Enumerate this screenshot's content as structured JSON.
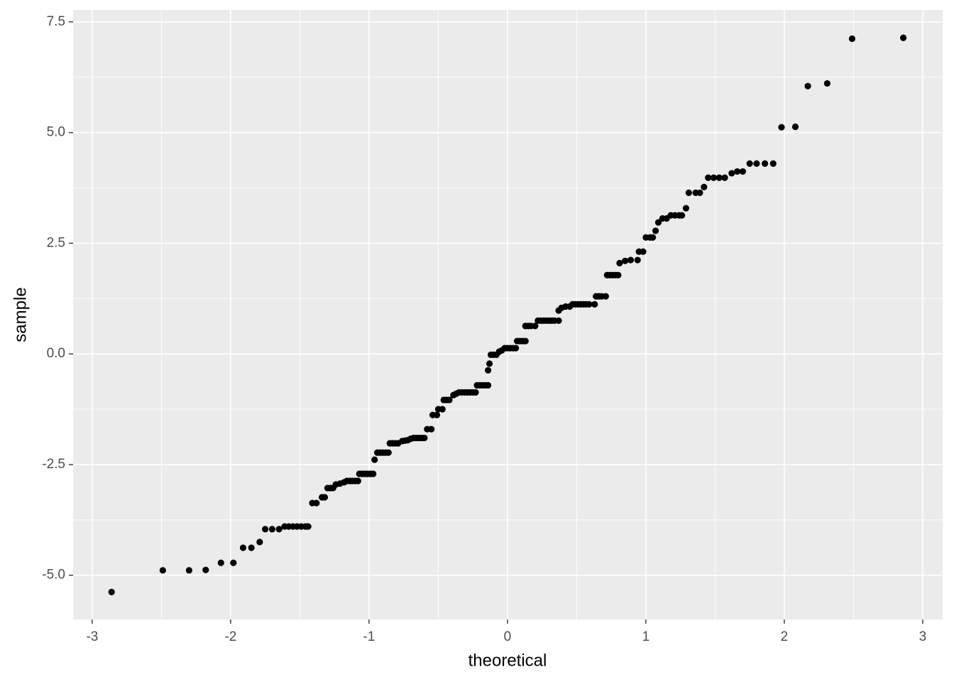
{
  "chart_data": {
    "type": "scatter",
    "x_label": "theoretical",
    "y_label": "sample",
    "color": "#000000",
    "grid": true,
    "xlim": [
      -3.138,
      3.144
    ],
    "ylim": [
      -6.0,
      7.77
    ],
    "xticks": [
      -3,
      -2,
      -1,
      0,
      1,
      2,
      3
    ],
    "yticks": [
      {
        "value": -5,
        "label": "-5.0"
      },
      {
        "value": -2.5,
        "label": "-2.5"
      },
      {
        "value": 0,
        "label": "0.0"
      },
      {
        "value": 2.5,
        "label": "2.5"
      },
      {
        "value": 5,
        "label": "5.0"
      },
      {
        "value": 7.5,
        "label": "7.5"
      }
    ],
    "x": [
      -2.86,
      -2.49,
      -2.3,
      -2.18,
      -2.07,
      -1.98,
      -1.91,
      -1.85,
      -1.79,
      -1.75,
      -1.7,
      -1.65,
      -1.61,
      -1.58,
      -1.55,
      -1.52,
      -1.49,
      -1.46,
      -1.44,
      -1.41,
      -1.38,
      -1.34,
      -1.32,
      -1.3,
      -1.28,
      -1.26,
      -1.24,
      -1.21,
      -1.18,
      -1.16,
      -1.14,
      -1.12,
      -1.1,
      -1.08,
      -1.07,
      -1.05,
      -1.03,
      -1.01,
      -0.99,
      -0.97,
      -0.96,
      -0.94,
      -0.92,
      -0.9,
      -0.88,
      -0.86,
      -0.85,
      -0.83,
      -0.81,
      -0.79,
      -0.76,
      -0.74,
      -0.72,
      -0.7,
      -0.68,
      -0.66,
      -0.64,
      -0.62,
      -0.6,
      -0.58,
      -0.55,
      -0.54,
      -0.51,
      -0.5,
      -0.47,
      -0.46,
      -0.44,
      -0.42,
      -0.39,
      -0.37,
      -0.35,
      -0.33,
      -0.31,
      -0.29,
      -0.27,
      -0.25,
      -0.23,
      -0.22,
      -0.2,
      -0.18,
      -0.16,
      -0.14,
      -0.14,
      -0.13,
      -0.12,
      -0.1,
      -0.08,
      -0.06,
      -0.04,
      -0.02,
      0.0,
      0.02,
      0.04,
      0.06,
      0.07,
      0.09,
      0.11,
      0.13,
      0.13,
      0.15,
      0.17,
      0.2,
      0.22,
      0.24,
      0.26,
      0.28,
      0.3,
      0.32,
      0.34,
      0.37,
      0.37,
      0.39,
      0.42,
      0.45,
      0.47,
      0.49,
      0.51,
      0.53,
      0.55,
      0.57,
      0.59,
      0.63,
      0.64,
      0.66,
      0.68,
      0.71,
      0.72,
      0.74,
      0.76,
      0.78,
      0.8,
      0.81,
      0.85,
      0.89,
      0.94,
      0.95,
      0.98,
      1.0,
      1.03,
      1.05,
      1.07,
      1.09,
      1.12,
      1.15,
      1.18,
      1.21,
      1.24,
      1.26,
      1.29,
      1.31,
      1.36,
      1.39,
      1.42,
      1.45,
      1.49,
      1.53,
      1.57,
      1.62,
      1.66,
      1.7,
      1.75,
      1.8,
      1.86,
      1.92,
      1.98,
      2.08,
      2.17,
      2.31,
      2.49,
      2.86
    ],
    "y": [
      -5.38,
      -4.89,
      -4.89,
      -4.88,
      -4.72,
      -4.72,
      -4.38,
      -4.38,
      -4.25,
      -3.96,
      -3.96,
      -3.96,
      -3.9,
      -3.9,
      -3.9,
      -3.9,
      -3.9,
      -3.9,
      -3.9,
      -3.37,
      -3.37,
      -3.24,
      -3.24,
      -3.03,
      -3.03,
      -3.03,
      -2.95,
      -2.93,
      -2.9,
      -2.87,
      -2.87,
      -2.87,
      -2.87,
      -2.87,
      -2.71,
      -2.71,
      -2.71,
      -2.71,
      -2.71,
      -2.71,
      -2.39,
      -2.23,
      -2.23,
      -2.23,
      -2.23,
      -2.23,
      -2.02,
      -2.02,
      -2.02,
      -2.02,
      -1.97,
      -1.96,
      -1.95,
      -1.92,
      -1.9,
      -1.9,
      -1.9,
      -1.9,
      -1.9,
      -1.7,
      -1.7,
      -1.38,
      -1.38,
      -1.25,
      -1.25,
      -1.04,
      -1.04,
      -1.04,
      -0.93,
      -0.9,
      -0.87,
      -0.87,
      -0.87,
      -0.87,
      -0.87,
      -0.87,
      -0.87,
      -0.71,
      -0.71,
      -0.71,
      -0.71,
      -0.71,
      -0.37,
      -0.22,
      -0.02,
      -0.02,
      -0.02,
      0.05,
      0.08,
      0.13,
      0.13,
      0.13,
      0.13,
      0.13,
      0.29,
      0.29,
      0.29,
      0.29,
      0.63,
      0.63,
      0.63,
      0.63,
      0.75,
      0.75,
      0.75,
      0.75,
      0.75,
      0.75,
      0.75,
      0.75,
      0.98,
      1.04,
      1.07,
      1.07,
      1.12,
      1.12,
      1.12,
      1.12,
      1.12,
      1.12,
      1.12,
      1.12,
      1.3,
      1.3,
      1.3,
      1.3,
      1.78,
      1.78,
      1.78,
      1.78,
      1.78,
      2.05,
      2.1,
      2.12,
      2.12,
      2.31,
      2.31,
      2.63,
      2.63,
      2.63,
      2.78,
      2.97,
      3.06,
      3.06,
      3.13,
      3.13,
      3.13,
      3.13,
      3.29,
      3.64,
      3.64,
      3.64,
      3.77,
      3.98,
      3.98,
      3.98,
      3.98,
      4.08,
      4.12,
      4.12,
      4.3,
      4.3,
      4.3,
      4.3,
      5.12,
      5.13,
      6.05,
      6.11,
      7.12,
      7.14
    ]
  }
}
